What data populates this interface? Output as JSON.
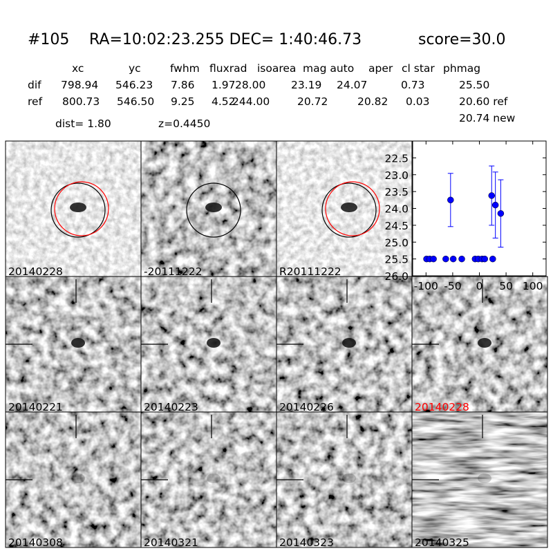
{
  "header": {
    "id": "#105",
    "coords": "RA=10:02:23.255 DEC= 1:40:46.73",
    "score": "score=30.0"
  },
  "table": {
    "columns": [
      "xc",
      "yc",
      "fwhm",
      "fluxrad",
      "isoarea",
      "mag auto",
      "aper",
      "cl star",
      "phmag"
    ],
    "rows": [
      [
        "dif",
        "798.94",
        "546.23",
        "7.86",
        "1.97",
        "28.00",
        "23.19",
        "24.07",
        "0.73",
        "25.50"
      ],
      [
        "ref",
        "800.73",
        "546.50",
        "9.25",
        "4.52",
        "244.00",
        "20.72",
        "20.82",
        "0.03",
        "20.60 ref"
      ]
    ],
    "extra": "20.74 new"
  },
  "dist": "dist=  1.80",
  "z": "z=0.4450",
  "panels": [
    {
      "label": "20140228",
      "color": "#000000"
    },
    {
      "label": "-20111222",
      "color": "#000000"
    },
    {
      "label": "R20111222",
      "color": "#000000"
    },
    {
      "label": "20140221",
      "color": "#000000"
    },
    {
      "label": "20140223",
      "color": "#000000"
    },
    {
      "label": "20140226",
      "color": "#000000"
    },
    {
      "label": "20140228",
      "color": "#ff0000"
    },
    {
      "label": "20140308",
      "color": "#000000"
    },
    {
      "label": "20140321",
      "color": "#000000"
    },
    {
      "label": "20140323",
      "color": "#000000"
    },
    {
      "label": "20140325",
      "color": "#000000"
    }
  ],
  "chart_data": {
    "type": "scatter",
    "color": "#0000ff",
    "x": [
      -99,
      -93,
      -86,
      -63,
      -54,
      -49,
      -33,
      -8,
      -2,
      5,
      10,
      23,
      25,
      30,
      40
    ],
    "values": [
      25.5,
      25.5,
      25.5,
      25.5,
      23.75,
      25.5,
      25.5,
      25.5,
      25.5,
      25.5,
      25.5,
      23.62,
      25.5,
      23.9,
      24.15
    ],
    "errors": [
      0.05,
      0.05,
      0.05,
      0.05,
      0.79,
      0.05,
      0.05,
      0.05,
      0.05,
      0.05,
      0.05,
      0.88,
      0.05,
      0.98,
      1.0
    ],
    "xlim": [
      -125,
      125
    ],
    "xticks": [
      -100,
      -50,
      0,
      50,
      100
    ],
    "ylim": [
      22.0,
      26.0
    ],
    "y_inverted": true,
    "yticks": [
      {
        "value": 22.5,
        "label": "22.5"
      },
      {
        "value": 23.0,
        "label": "23.0"
      },
      {
        "value": 23.5,
        "label": "23.5"
      },
      {
        "value": 24.0,
        "label": "24.0"
      },
      {
        "value": 24.5,
        "label": "24.5"
      },
      {
        "value": 25.0,
        "label": "25.0"
      },
      {
        "value": 25.5,
        "label": "25.5"
      },
      {
        "value": 26.0,
        "label": "26.0"
      }
    ]
  }
}
